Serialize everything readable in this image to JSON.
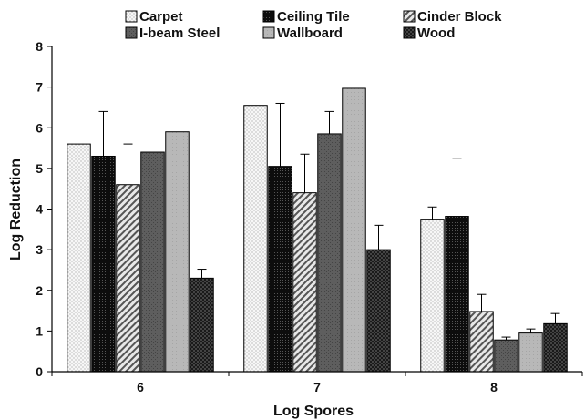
{
  "chart_data": {
    "type": "bar",
    "title": "",
    "xlabel": "Log Spores",
    "ylabel": "Log Reduction",
    "categories": [
      "6",
      "7",
      "8"
    ],
    "ylim": [
      0,
      8
    ],
    "yticks": [
      0,
      1,
      2,
      3,
      4,
      5,
      6,
      7,
      8
    ],
    "grid": false,
    "legend_position": "top",
    "series": [
      {
        "name": "Carpet",
        "values": [
          5.6,
          6.55,
          3.75
        ],
        "errors": [
          null,
          null,
          0.3
        ],
        "pattern": "dots",
        "color": "#f2f2f2"
      },
      {
        "name": "Ceiling Tile",
        "values": [
          5.3,
          5.05,
          3.82
        ],
        "errors": [
          1.1,
          1.55,
          1.43
        ],
        "pattern": "dense-dark",
        "color": "#111111"
      },
      {
        "name": "Cinder Block",
        "values": [
          4.6,
          4.4,
          1.48
        ],
        "errors": [
          1.0,
          0.95,
          0.42
        ],
        "pattern": "diagonal",
        "color": "#bfbfbf"
      },
      {
        "name": "I-beam Steel",
        "values": [
          5.4,
          5.85,
          0.78
        ],
        "errors": [
          null,
          0.55,
          0.07
        ],
        "pattern": "dark-gray",
        "color": "#5a5a5a"
      },
      {
        "name": "Wallboard",
        "values": [
          5.9,
          6.97,
          0.95
        ],
        "errors": [
          null,
          null,
          0.1
        ],
        "pattern": "light-gray",
        "color": "#b5b5b5"
      },
      {
        "name": "Wood",
        "values": [
          2.3,
          3.0,
          1.18
        ],
        "errors": [
          0.22,
          0.6,
          0.25
        ],
        "pattern": "checker-dark",
        "color": "#1c1c1c"
      }
    ]
  }
}
